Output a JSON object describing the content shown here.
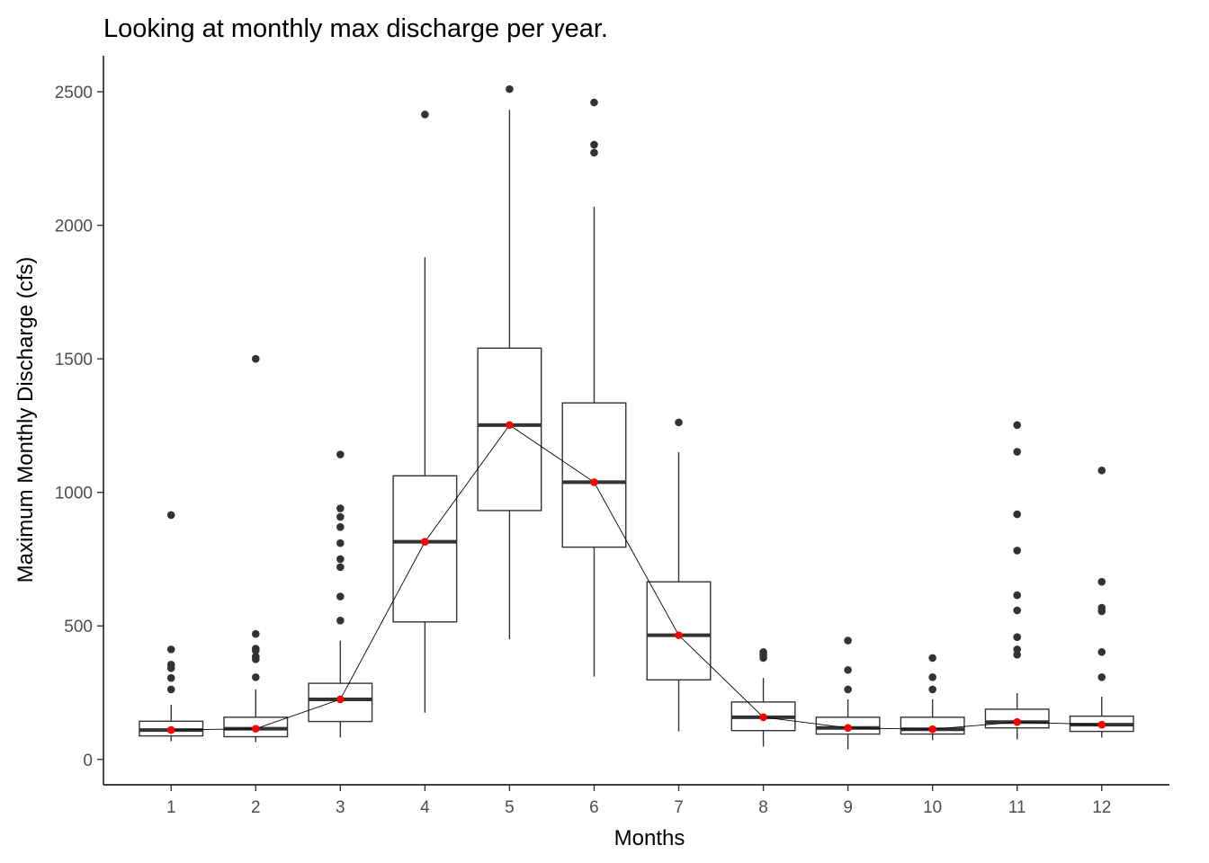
{
  "chart_data": {
    "type": "boxplot",
    "title": "Looking at monthly max discharge per year.",
    "xlabel": "Months",
    "ylabel": "Maximum Monthly Discharge (cfs)",
    "ylim": [
      -95,
      2635
    ],
    "y_ticks": [
      0,
      500,
      1000,
      1500,
      2000,
      2500
    ],
    "grid": false,
    "categories": [
      "1",
      "2",
      "3",
      "4",
      "5",
      "6",
      "7",
      "8",
      "9",
      "10",
      "11",
      "12"
    ],
    "boxes": [
      {
        "month": "1",
        "whisker_low": 68,
        "q1": 88,
        "median": 110,
        "q3": 143,
        "whisker_high": 205,
        "outliers": [
          262,
          305,
          342,
          355,
          412,
          915
        ]
      },
      {
        "month": "2",
        "whisker_low": 65,
        "q1": 85,
        "median": 115,
        "q3": 158,
        "whisker_high": 262,
        "outliers": [
          308,
          375,
          385,
          408,
          415,
          470,
          1500
        ]
      },
      {
        "month": "3",
        "whisker_low": 82,
        "q1": 142,
        "median": 225,
        "q3": 285,
        "whisker_high": 445,
        "outliers": [
          520,
          610,
          720,
          750,
          810,
          870,
          908,
          940,
          1142
        ]
      },
      {
        "month": "4",
        "whisker_low": 175,
        "q1": 515,
        "median": 815,
        "q3": 1062,
        "whisker_high": 1880,
        "outliers": [
          2415
        ]
      },
      {
        "month": "5",
        "whisker_low": 450,
        "q1": 932,
        "median": 1252,
        "q3": 1540,
        "whisker_high": 2432,
        "outliers": [
          2510
        ]
      },
      {
        "month": "6",
        "whisker_low": 310,
        "q1": 795,
        "median": 1038,
        "q3": 1335,
        "whisker_high": 2070,
        "outliers": [
          2272,
          2302,
          2460
        ]
      },
      {
        "month": "7",
        "whisker_low": 105,
        "q1": 298,
        "median": 465,
        "q3": 665,
        "whisker_high": 1150,
        "outliers": [
          1262
        ]
      },
      {
        "month": "8",
        "whisker_low": 48,
        "q1": 108,
        "median": 158,
        "q3": 215,
        "whisker_high": 305,
        "outliers": [
          380,
          392,
          402
        ]
      },
      {
        "month": "9",
        "whisker_low": 38,
        "q1": 95,
        "median": 118,
        "q3": 158,
        "whisker_high": 225,
        "outliers": [
          262,
          335,
          445
        ]
      },
      {
        "month": "10",
        "whisker_low": 72,
        "q1": 95,
        "median": 113,
        "q3": 158,
        "whisker_high": 225,
        "outliers": [
          262,
          308,
          380
        ]
      },
      {
        "month": "11",
        "whisker_low": 75,
        "q1": 118,
        "median": 140,
        "q3": 188,
        "whisker_high": 248,
        "outliers": [
          392,
          412,
          458,
          558,
          615,
          782,
          918,
          1152,
          1252
        ]
      },
      {
        "month": "12",
        "whisker_low": 82,
        "q1": 105,
        "median": 130,
        "q3": 162,
        "whisker_high": 235,
        "outliers": [
          308,
          402,
          555,
          568,
          665,
          1082
        ]
      }
    ],
    "median_line": {
      "values": [
        110,
        115,
        225,
        815,
        1252,
        1038,
        465,
        158,
        118,
        113,
        140,
        130
      ],
      "line_color": "#000000",
      "point_color": "#ff0000"
    },
    "colors": {
      "box_outline": "#333333",
      "outlier": "#333333",
      "median_bar": "#333333"
    }
  }
}
